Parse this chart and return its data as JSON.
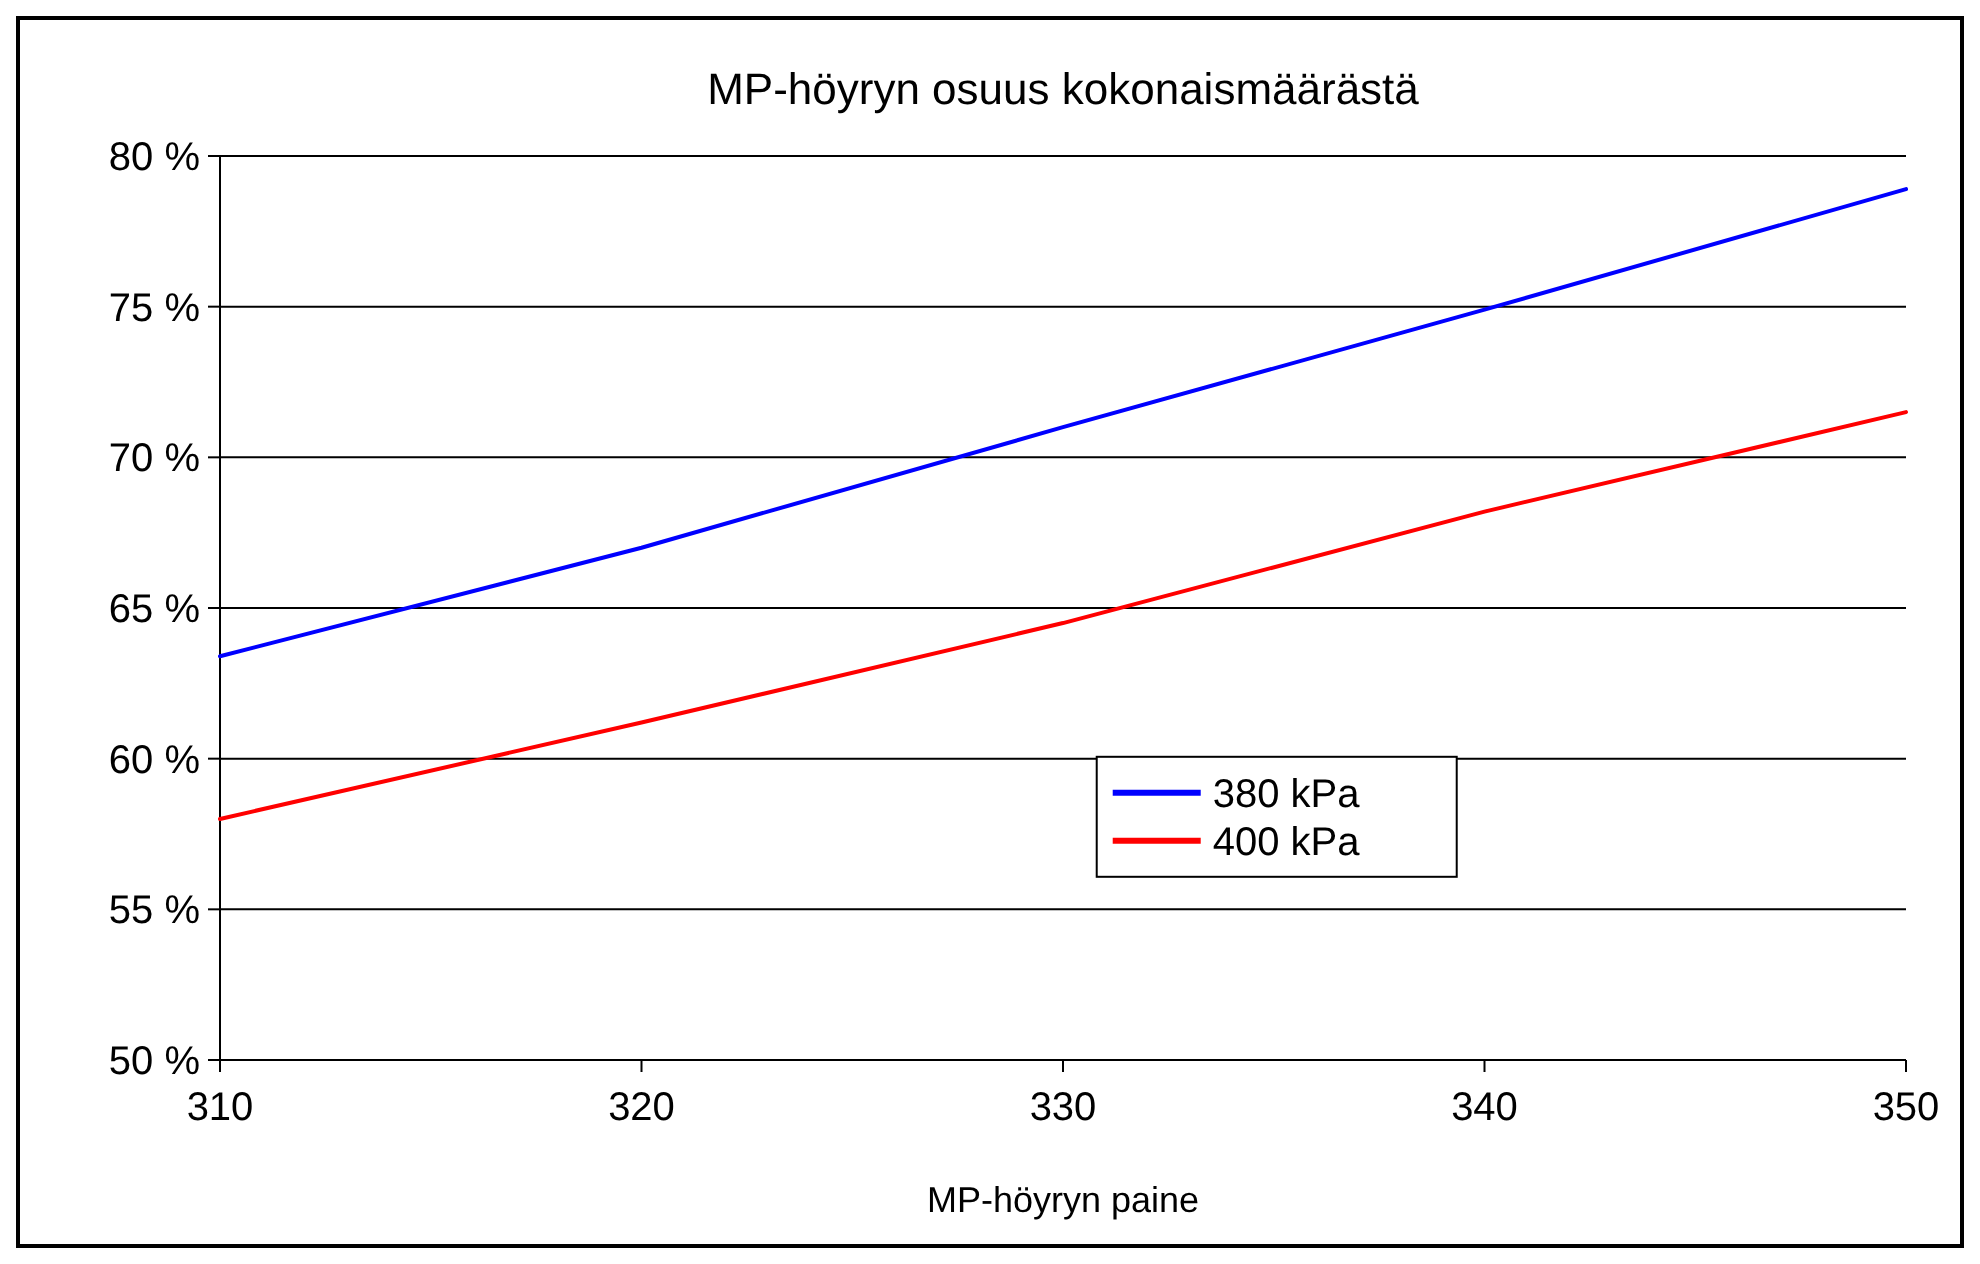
{
  "chart_data": {
    "type": "line",
    "title": "MP-höyryn osuus kokonaismäärästä",
    "xlabel": "MP-höyryn paine",
    "x": [
      310,
      320,
      330,
      340,
      350
    ],
    "series": [
      {
        "name": "380 kPa",
        "color": "#0000ff",
        "values": [
          63.4,
          67.0,
          71.0,
          74.9,
          78.9
        ]
      },
      {
        "name": "400 kPa",
        "color": "#ff0000",
        "values": [
          58.0,
          61.2,
          64.5,
          68.2,
          71.5
        ]
      }
    ],
    "xlim": [
      310,
      350
    ],
    "xticks": [
      310,
      320,
      330,
      340,
      350
    ],
    "ylim": [
      50,
      80
    ],
    "yticks": [
      {
        "value": 50,
        "label": "50 %"
      },
      {
        "value": 55,
        "label": "55 %"
      },
      {
        "value": 60,
        "label": "60 %"
      },
      {
        "value": 65,
        "label": "65 %"
      },
      {
        "value": 70,
        "label": "70 %"
      },
      {
        "value": 75,
        "label": "75 %"
      },
      {
        "value": 80,
        "label": "80 %"
      }
    ],
    "grid": "y",
    "legend": "right",
    "marker": "none",
    "line_style": "solid"
  }
}
